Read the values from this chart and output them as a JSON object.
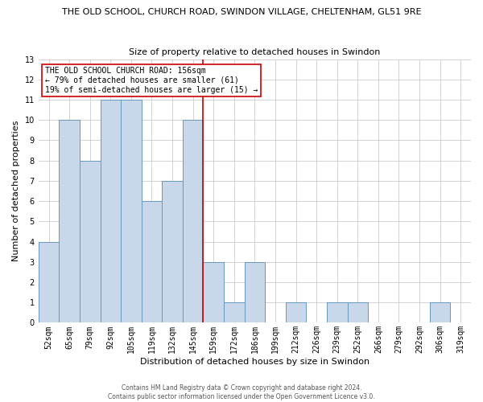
{
  "title": "THE OLD SCHOOL, CHURCH ROAD, SWINDON VILLAGE, CHELTENHAM, GL51 9RE",
  "subtitle": "Size of property relative to detached houses in Swindon",
  "xlabel": "Distribution of detached houses by size in Swindon",
  "ylabel": "Number of detached properties",
  "categories": [
    "52sqm",
    "65sqm",
    "79sqm",
    "92sqm",
    "105sqm",
    "119sqm",
    "132sqm",
    "145sqm",
    "159sqm",
    "172sqm",
    "186sqm",
    "199sqm",
    "212sqm",
    "226sqm",
    "239sqm",
    "252sqm",
    "266sqm",
    "279sqm",
    "292sqm",
    "306sqm",
    "319sqm"
  ],
  "values": [
    4,
    10,
    8,
    11,
    11,
    6,
    7,
    10,
    3,
    1,
    3,
    0,
    1,
    0,
    1,
    1,
    0,
    0,
    0,
    1,
    0
  ],
  "bar_color": "#c8d8ea",
  "bar_edge_color": "#6699bb",
  "vline_index": 8,
  "vline_color": "#cc0000",
  "ylim": [
    0,
    13
  ],
  "yticks": [
    0,
    1,
    2,
    3,
    4,
    5,
    6,
    7,
    8,
    9,
    10,
    11,
    12,
    13
  ],
  "annotation_title": "THE OLD SCHOOL CHURCH ROAD: 156sqm",
  "annotation_line1": "← 79% of detached houses are smaller (61)",
  "annotation_line2": "19% of semi-detached houses are larger (15) →",
  "annotation_box_color": "#ffffff",
  "annotation_box_edge": "#cc0000",
  "footer_line1": "Contains HM Land Registry data © Crown copyright and database right 2024.",
  "footer_line2": "Contains public sector information licensed under the Open Government Licence v3.0.",
  "bg_color": "#ffffff",
  "grid_color": "#cccccc",
  "title_fontsize": 8,
  "subtitle_fontsize": 8,
  "axis_label_fontsize": 8,
  "tick_fontsize": 7,
  "annotation_fontsize": 7,
  "footer_fontsize": 5.5
}
